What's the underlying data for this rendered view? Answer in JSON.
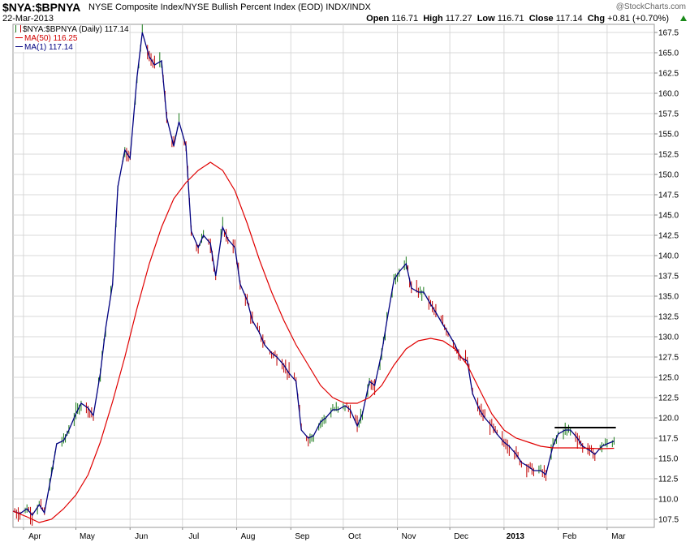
{
  "header": {
    "symbol": "$NYA:$BPNYA",
    "description": "NYSE Composite Index/NYSE Bullish Percent Index (EOD)  INDX/INDX",
    "date": "22-Mar-2013",
    "site": "@StockCharts.com",
    "open_label": "Open",
    "open": "116.71",
    "high_label": "High",
    "high": "117.27",
    "low_label": "Low",
    "low": "116.71",
    "close_label": "Close",
    "close": "117.14",
    "chg_label": "Chg",
    "chg": "+0.81 (+0.70%)"
  },
  "legend": {
    "main": "$NYA:$BPNYA (Daily) 117.14",
    "ma50": "MA(50) 116.25",
    "ma1": "MA(1) 117.14"
  },
  "colors": {
    "price": "#000080",
    "ma50": "#e00000",
    "bar_up": "#1a7a1a",
    "bar_down": "#c00000",
    "resistance": "#000000",
    "grid": "#d8d8d8"
  },
  "chart_data": {
    "type": "line",
    "title": "$NYA:$BPNYA",
    "ylim": [
      106.5,
      168.5
    ],
    "xlim": [
      "2012-03-26",
      "2013-03-28"
    ],
    "y_ticks": [
      "107.5",
      "110.0",
      "112.5",
      "115.0",
      "117.5",
      "120.0",
      "122.5",
      "125.0",
      "127.5",
      "130.0",
      "132.5",
      "135.0",
      "137.5",
      "140.0",
      "142.5",
      "145.0",
      "147.5",
      "150.0",
      "152.5",
      "155.0",
      "157.5",
      "160.0",
      "162.5",
      "165.0",
      "167.5"
    ],
    "x_ticks": [
      {
        "label": "Apr",
        "date": "2012-04-01"
      },
      {
        "label": "May",
        "date": "2012-05-01"
      },
      {
        "label": "Jun",
        "date": "2012-06-01"
      },
      {
        "label": "Jul",
        "date": "2012-07-01"
      },
      {
        "label": "Aug",
        "date": "2012-08-01"
      },
      {
        "label": "Sep",
        "date": "2012-09-01"
      },
      {
        "label": "Oct",
        "date": "2012-10-01"
      },
      {
        "label": "Nov",
        "date": "2012-11-01"
      },
      {
        "label": "Dec",
        "date": "2012-12-01"
      },
      {
        "label": "2013",
        "date": "2013-01-01",
        "bold": true
      },
      {
        "label": "Feb",
        "date": "2013-02-01"
      },
      {
        "label": "Mar",
        "date": "2013-03-01"
      }
    ],
    "series": [
      {
        "name": "MA(1)",
        "style": "line-with-bars",
        "points": [
          [
            "2012-03-26",
            108.5
          ],
          [
            "2012-03-30",
            108.2
          ],
          [
            "2012-04-03",
            108.8
          ],
          [
            "2012-04-06",
            108.0
          ],
          [
            "2012-04-10",
            109.3
          ],
          [
            "2012-04-13",
            108.3
          ],
          [
            "2012-04-17",
            113.0
          ],
          [
            "2012-04-20",
            116.8
          ],
          [
            "2012-04-24",
            117.2
          ],
          [
            "2012-04-27",
            118.5
          ],
          [
            "2012-05-01",
            120.5
          ],
          [
            "2012-05-04",
            121.8
          ],
          [
            "2012-05-08",
            121.2
          ],
          [
            "2012-05-11",
            120.3
          ],
          [
            "2012-05-15",
            125.5
          ],
          [
            "2012-05-18",
            131.0
          ],
          [
            "2012-05-22",
            136.5
          ],
          [
            "2012-05-25",
            148.5
          ],
          [
            "2012-05-29",
            153.0
          ],
          [
            "2012-06-01",
            152.0
          ],
          [
            "2012-06-05",
            162.0
          ],
          [
            "2012-06-08",
            167.5
          ],
          [
            "2012-06-12",
            164.5
          ],
          [
            "2012-06-15",
            163.5
          ],
          [
            "2012-06-19",
            164.0
          ],
          [
            "2012-06-22",
            157.0
          ],
          [
            "2012-06-26",
            153.5
          ],
          [
            "2012-06-29",
            156.5
          ],
          [
            "2012-07-03",
            153.5
          ],
          [
            "2012-07-06",
            143.0
          ],
          [
            "2012-07-10",
            141.0
          ],
          [
            "2012-07-13",
            142.5
          ],
          [
            "2012-07-17",
            141.5
          ],
          [
            "2012-07-20",
            137.5
          ],
          [
            "2012-07-24",
            143.5
          ],
          [
            "2012-07-27",
            142.0
          ],
          [
            "2012-07-31",
            141.0
          ],
          [
            "2012-08-03",
            136.5
          ],
          [
            "2012-08-07",
            134.5
          ],
          [
            "2012-08-10",
            132.0
          ],
          [
            "2012-08-14",
            130.5
          ],
          [
            "2012-08-17",
            129.0
          ],
          [
            "2012-08-21",
            128.0
          ],
          [
            "2012-08-24",
            127.5
          ],
          [
            "2012-08-28",
            126.5
          ],
          [
            "2012-08-31",
            125.5
          ],
          [
            "2012-09-04",
            124.5
          ],
          [
            "2012-09-07",
            118.5
          ],
          [
            "2012-09-11",
            117.5
          ],
          [
            "2012-09-14",
            117.8
          ],
          [
            "2012-09-18",
            119.5
          ],
          [
            "2012-09-21",
            120.0
          ],
          [
            "2012-09-25",
            121.0
          ],
          [
            "2012-09-28",
            121.0
          ],
          [
            "2012-10-02",
            121.5
          ],
          [
            "2012-10-05",
            121.0
          ],
          [
            "2012-10-09",
            119.0
          ],
          [
            "2012-10-12",
            120.5
          ],
          [
            "2012-10-16",
            124.5
          ],
          [
            "2012-10-19",
            124.0
          ],
          [
            "2012-10-23",
            128.0
          ],
          [
            "2012-10-26",
            132.0
          ],
          [
            "2012-10-30",
            137.0
          ],
          [
            "2012-11-02",
            138.0
          ],
          [
            "2012-11-06",
            139.0
          ],
          [
            "2012-11-09",
            136.0
          ],
          [
            "2012-11-13",
            135.5
          ],
          [
            "2012-11-16",
            135.5
          ],
          [
            "2012-11-20",
            134.0
          ],
          [
            "2012-11-23",
            133.0
          ],
          [
            "2012-11-27",
            131.5
          ],
          [
            "2012-11-30",
            130.5
          ],
          [
            "2012-12-04",
            129.0
          ],
          [
            "2012-12-07",
            127.5
          ],
          [
            "2012-12-11",
            127.0
          ],
          [
            "2012-12-14",
            123.0
          ],
          [
            "2012-12-18",
            121.0
          ],
          [
            "2012-12-21",
            120.0
          ],
          [
            "2012-12-25",
            119.0
          ],
          [
            "2012-12-28",
            118.0
          ],
          [
            "2013-01-01",
            117.0
          ],
          [
            "2013-01-04",
            116.5
          ],
          [
            "2013-01-08",
            115.5
          ],
          [
            "2013-01-11",
            114.5
          ],
          [
            "2013-01-15",
            114.0
          ],
          [
            "2013-01-18",
            113.5
          ],
          [
            "2013-01-22",
            113.5
          ],
          [
            "2013-01-25",
            113.0
          ],
          [
            "2013-01-29",
            116.5
          ],
          [
            "2013-02-01",
            118.0
          ],
          [
            "2013-02-05",
            118.5
          ],
          [
            "2013-02-08",
            118.5
          ],
          [
            "2013-02-12",
            117.5
          ],
          [
            "2013-02-15",
            116.5
          ],
          [
            "2013-02-19",
            116.0
          ],
          [
            "2013-02-22",
            115.5
          ],
          [
            "2013-02-26",
            116.5
          ],
          [
            "2013-03-01",
            116.8
          ],
          [
            "2013-03-05",
            117.14
          ]
        ]
      },
      {
        "name": "MA(50)",
        "style": "line",
        "points": [
          [
            "2012-03-26",
            108.5
          ],
          [
            "2012-04-03",
            107.8
          ],
          [
            "2012-04-10",
            107.1
          ],
          [
            "2012-04-17",
            107.5
          ],
          [
            "2012-04-24",
            108.8
          ],
          [
            "2012-05-01",
            110.5
          ],
          [
            "2012-05-08",
            113.0
          ],
          [
            "2012-05-15",
            117.0
          ],
          [
            "2012-05-22",
            122.0
          ],
          [
            "2012-05-29",
            127.5
          ],
          [
            "2012-06-05",
            133.5
          ],
          [
            "2012-06-12",
            139.0
          ],
          [
            "2012-06-19",
            143.5
          ],
          [
            "2012-06-26",
            147.0
          ],
          [
            "2012-07-03",
            149.0
          ],
          [
            "2012-07-10",
            150.5
          ],
          [
            "2012-07-17",
            151.5
          ],
          [
            "2012-07-24",
            150.5
          ],
          [
            "2012-07-31",
            148.0
          ],
          [
            "2012-08-07",
            144.0
          ],
          [
            "2012-08-14",
            139.5
          ],
          [
            "2012-08-21",
            135.5
          ],
          [
            "2012-08-28",
            132.0
          ],
          [
            "2012-09-04",
            129.0
          ],
          [
            "2012-09-11",
            126.5
          ],
          [
            "2012-09-18",
            124.0
          ],
          [
            "2012-09-25",
            122.5
          ],
          [
            "2012-10-02",
            121.8
          ],
          [
            "2012-10-09",
            121.8
          ],
          [
            "2012-10-16",
            122.5
          ],
          [
            "2012-10-23",
            124.0
          ],
          [
            "2012-10-30",
            126.5
          ],
          [
            "2012-11-06",
            128.5
          ],
          [
            "2012-11-13",
            129.5
          ],
          [
            "2012-11-20",
            129.8
          ],
          [
            "2012-11-27",
            129.5
          ],
          [
            "2012-12-04",
            128.5
          ],
          [
            "2012-12-11",
            126.5
          ],
          [
            "2012-12-18",
            123.5
          ],
          [
            "2012-12-25",
            120.5
          ],
          [
            "2013-01-01",
            118.5
          ],
          [
            "2013-01-08",
            117.5
          ],
          [
            "2013-01-15",
            117.0
          ],
          [
            "2013-01-22",
            116.5
          ],
          [
            "2013-01-29",
            116.3
          ],
          [
            "2013-02-05",
            116.3
          ],
          [
            "2013-02-12",
            116.3
          ],
          [
            "2013-02-19",
            116.25
          ],
          [
            "2013-02-26",
            116.2
          ],
          [
            "2013-03-05",
            116.25
          ]
        ]
      }
    ],
    "annotations": [
      {
        "type": "horizontal-line",
        "y": 118.8,
        "x_from": "2013-01-30",
        "x_to": "2013-03-06"
      }
    ],
    "grid": true
  }
}
